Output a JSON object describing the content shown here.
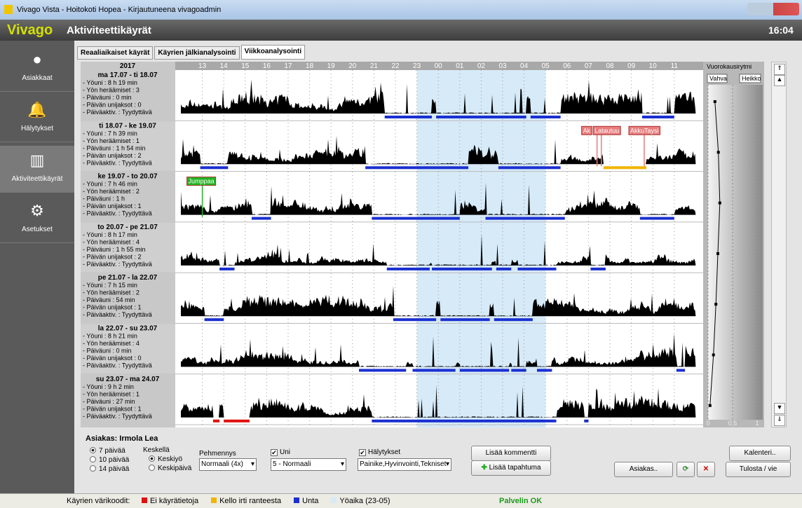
{
  "window": {
    "title": "Vivago Vista - Hoitokoti Hopea - Kirjautuneena vivagoadmin"
  },
  "header": {
    "brand": "Vivago",
    "title": "Aktiviteettikäyrät",
    "time": "16:04"
  },
  "sidebar": [
    "Asiakkaat",
    "Hälytykset",
    "Aktiviteettikäyrät",
    "Asetukset"
  ],
  "tabs": [
    "Reaaliaikaiset käyrät",
    "Käyrien jälkianalysointi",
    "Viikkoanalysointi"
  ],
  "active_tab": 2,
  "chart": {
    "year": "2017",
    "hours": [
      "13",
      "14",
      "15",
      "16",
      "17",
      "18",
      "19",
      "20",
      "21",
      "22",
      "23",
      "00",
      "01",
      "02",
      "03",
      "04",
      "05",
      "06",
      "07",
      "08",
      "09",
      "10",
      "11"
    ],
    "night": [
      23,
      5
    ],
    "days": [
      {
        "date": "ma 17.07 - ti 18.07",
        "stats": [
          "- Yöuni : 8 h 19 min",
          "- Yön heräämiset : 3",
          "- Päiväuni : 0 min",
          "- Päivän unijaksot : 0",
          "- Päiväaktiv. : Tyydyttävä"
        ],
        "sleep": [
          [
            21.5,
            23.7
          ],
          [
            23.9,
            4.1
          ],
          [
            4.3,
            5.7
          ],
          [
            9.5,
            11.0
          ]
        ],
        "off_wrist": [],
        "no_data": [],
        "events": []
      },
      {
        "date": "ti 18.07 - ke 19.07",
        "stats": [
          "- Yöuni : 7 h 39 min",
          "- Yön heräämiset : 1",
          "- Päiväuni : 1 h 54 min",
          "- Päivän unijaksot : 2",
          "- Päiväaktiv. : Tyydyttävä"
        ],
        "sleep": [
          [
            12.9,
            14.2
          ],
          [
            20.6,
            1.4
          ],
          [
            2.8,
            5.7
          ]
        ],
        "off_wrist": [
          [
            7.7,
            9.7
          ]
        ],
        "no_data": [],
        "events": [
          {
            "label": "Ak",
            "time": 7.4,
            "color": "#e87c7c"
          },
          {
            "label": "Latautuu",
            "time": 7.6,
            "color": "#e87c7c"
          },
          {
            "label": "AkkuTaysi",
            "time": 9.6,
            "color": "#e87c7c"
          }
        ]
      },
      {
        "date": "ke 19.07 - to 20.07",
        "stats": [
          "- Yöuni : 7 h 46 min",
          "- Yön heräämiset : 2",
          "- Päiväuni : 1 h",
          "- Päivän unijaksot : 1",
          "- Päiväaktiv. : Tyydyttävä"
        ],
        "sleep": [
          [
            15.3,
            16.2
          ],
          [
            20.9,
            1.0
          ],
          [
            2.2,
            5.9
          ],
          [
            9.4,
            11.0
          ]
        ],
        "off_wrist": [],
        "no_data": [],
        "events": [
          {
            "label": "Jumppaa",
            "time": 13.0,
            "color": "#22b422"
          }
        ]
      },
      {
        "date": "to 20.07 - pe 21.07",
        "stats": [
          "- Yöuni : 8 h 17 min",
          "- Yön heräämiset : 4",
          "- Päiväuni : 1 h 55 min",
          "- Päivän unijaksot : 2",
          "- Päiväaktiv. : Tyydyttävä"
        ],
        "sleep": [
          [
            13.8,
            14.5
          ],
          [
            21.6,
            23.6
          ],
          [
            23.7,
            2.5
          ],
          [
            2.7,
            3.4
          ],
          [
            3.7,
            5.5
          ],
          [
            7.1,
            7.8
          ]
        ],
        "off_wrist": [],
        "no_data": [],
        "events": []
      },
      {
        "date": "pe 21.07 - la 22.07",
        "stats": [
          "- Yöuni : 7 h 15 min",
          "- Yön heräämiset : 2",
          "- Päiväuni : 54 min",
          "- Päivän unijaksot : 1",
          "- Päiväaktiv. : Tyydyttävä"
        ],
        "sleep": [
          [
            13.1,
            14.0
          ],
          [
            21.9,
            23.9
          ],
          [
            0.1,
            2.4
          ],
          [
            2.6,
            4.4
          ]
        ],
        "off_wrist": [],
        "no_data": [],
        "events": []
      },
      {
        "date": "la 22.07 - su 23.07",
        "stats": [
          "- Yöuni : 8 h 21 min",
          "- Yön heräämiset : 4",
          "- Päiväuni : 0 min",
          "- Päivän unijaksot : 0",
          "- Päiväaktiv. : Tyydyttävä"
        ],
        "sleep": [
          [
            20.3,
            22.5
          ],
          [
            22.8,
            0.8
          ],
          [
            1.0,
            3.3
          ],
          [
            3.4,
            4.1
          ],
          [
            4.6,
            5.3
          ],
          [
            11.1,
            11.5
          ]
        ],
        "off_wrist": [],
        "no_data": [],
        "events": []
      },
      {
        "date": "su 23.07 - ma 24.07",
        "stats": [
          "- Yöuni : 9 h 2 min",
          "- Yön heräämiset : 1",
          "- Päiväuni : 27 min",
          "- Päivän unijaksot : 1",
          "- Päiväaktiv. : Tyydyttävä"
        ],
        "sleep": [
          [
            20.9,
            5.5
          ],
          [
            6.8,
            7.0
          ]
        ],
        "off_wrist": [],
        "no_data": [
          [
            13.5,
            13.8
          ],
          [
            14.0,
            15.2
          ]
        ],
        "events": []
      }
    ]
  },
  "rhythm": {
    "title": "Vuorokausirytmi",
    "strong": "Vahva",
    "weak": "Heikko",
    "xlim": [
      0,
      1
    ],
    "xticks": [
      0,
      {
        "value": 0.5,
        "label": "0,5"
      },
      1
    ],
    "values": [
      0.14,
      0.21,
      0.24,
      0.2,
      0.16,
      0.11,
      0.04
    ]
  },
  "controls": {
    "client": "Asiakas: Irmola Lea",
    "range_options": [
      "7 päivää",
      "10 päivää",
      "14 päivää"
    ],
    "range_selected": 0,
    "center_label": "Keskellä",
    "center_options": [
      "Keskiyö",
      "Keskipäivä"
    ],
    "center_selected": 0,
    "smoothing_label": "Pehmennys",
    "smoothing_value": "Normaali (4x)",
    "sleep_label": "Uni",
    "sleep_checked": true,
    "sleep_value": "5 - Normaali",
    "alarms_label": "Hälytykset",
    "alarms_checked": true,
    "alarms_value": "Painike,Hyvinvointi,Tekniset",
    "add_comment": "Lisää kommentti",
    "add_event": "Lisää tapahtuma",
    "calendar": "Kalenteri..",
    "client_button": "Asiakas..",
    "print": "Tulosta / vie"
  },
  "legend": {
    "title": "Käyrien värikoodit:",
    "items": [
      {
        "label": "Ei käyrätietoja",
        "color": "#e01010"
      },
      {
        "label": "Kello irti ranteesta",
        "color": "#f0b400"
      },
      {
        "label": "Unta",
        "color": "#1a2fd0"
      },
      {
        "label": "Yöaika (23-05)",
        "color": "#d6eaf8"
      }
    ]
  },
  "status": "Palvelin OK"
}
